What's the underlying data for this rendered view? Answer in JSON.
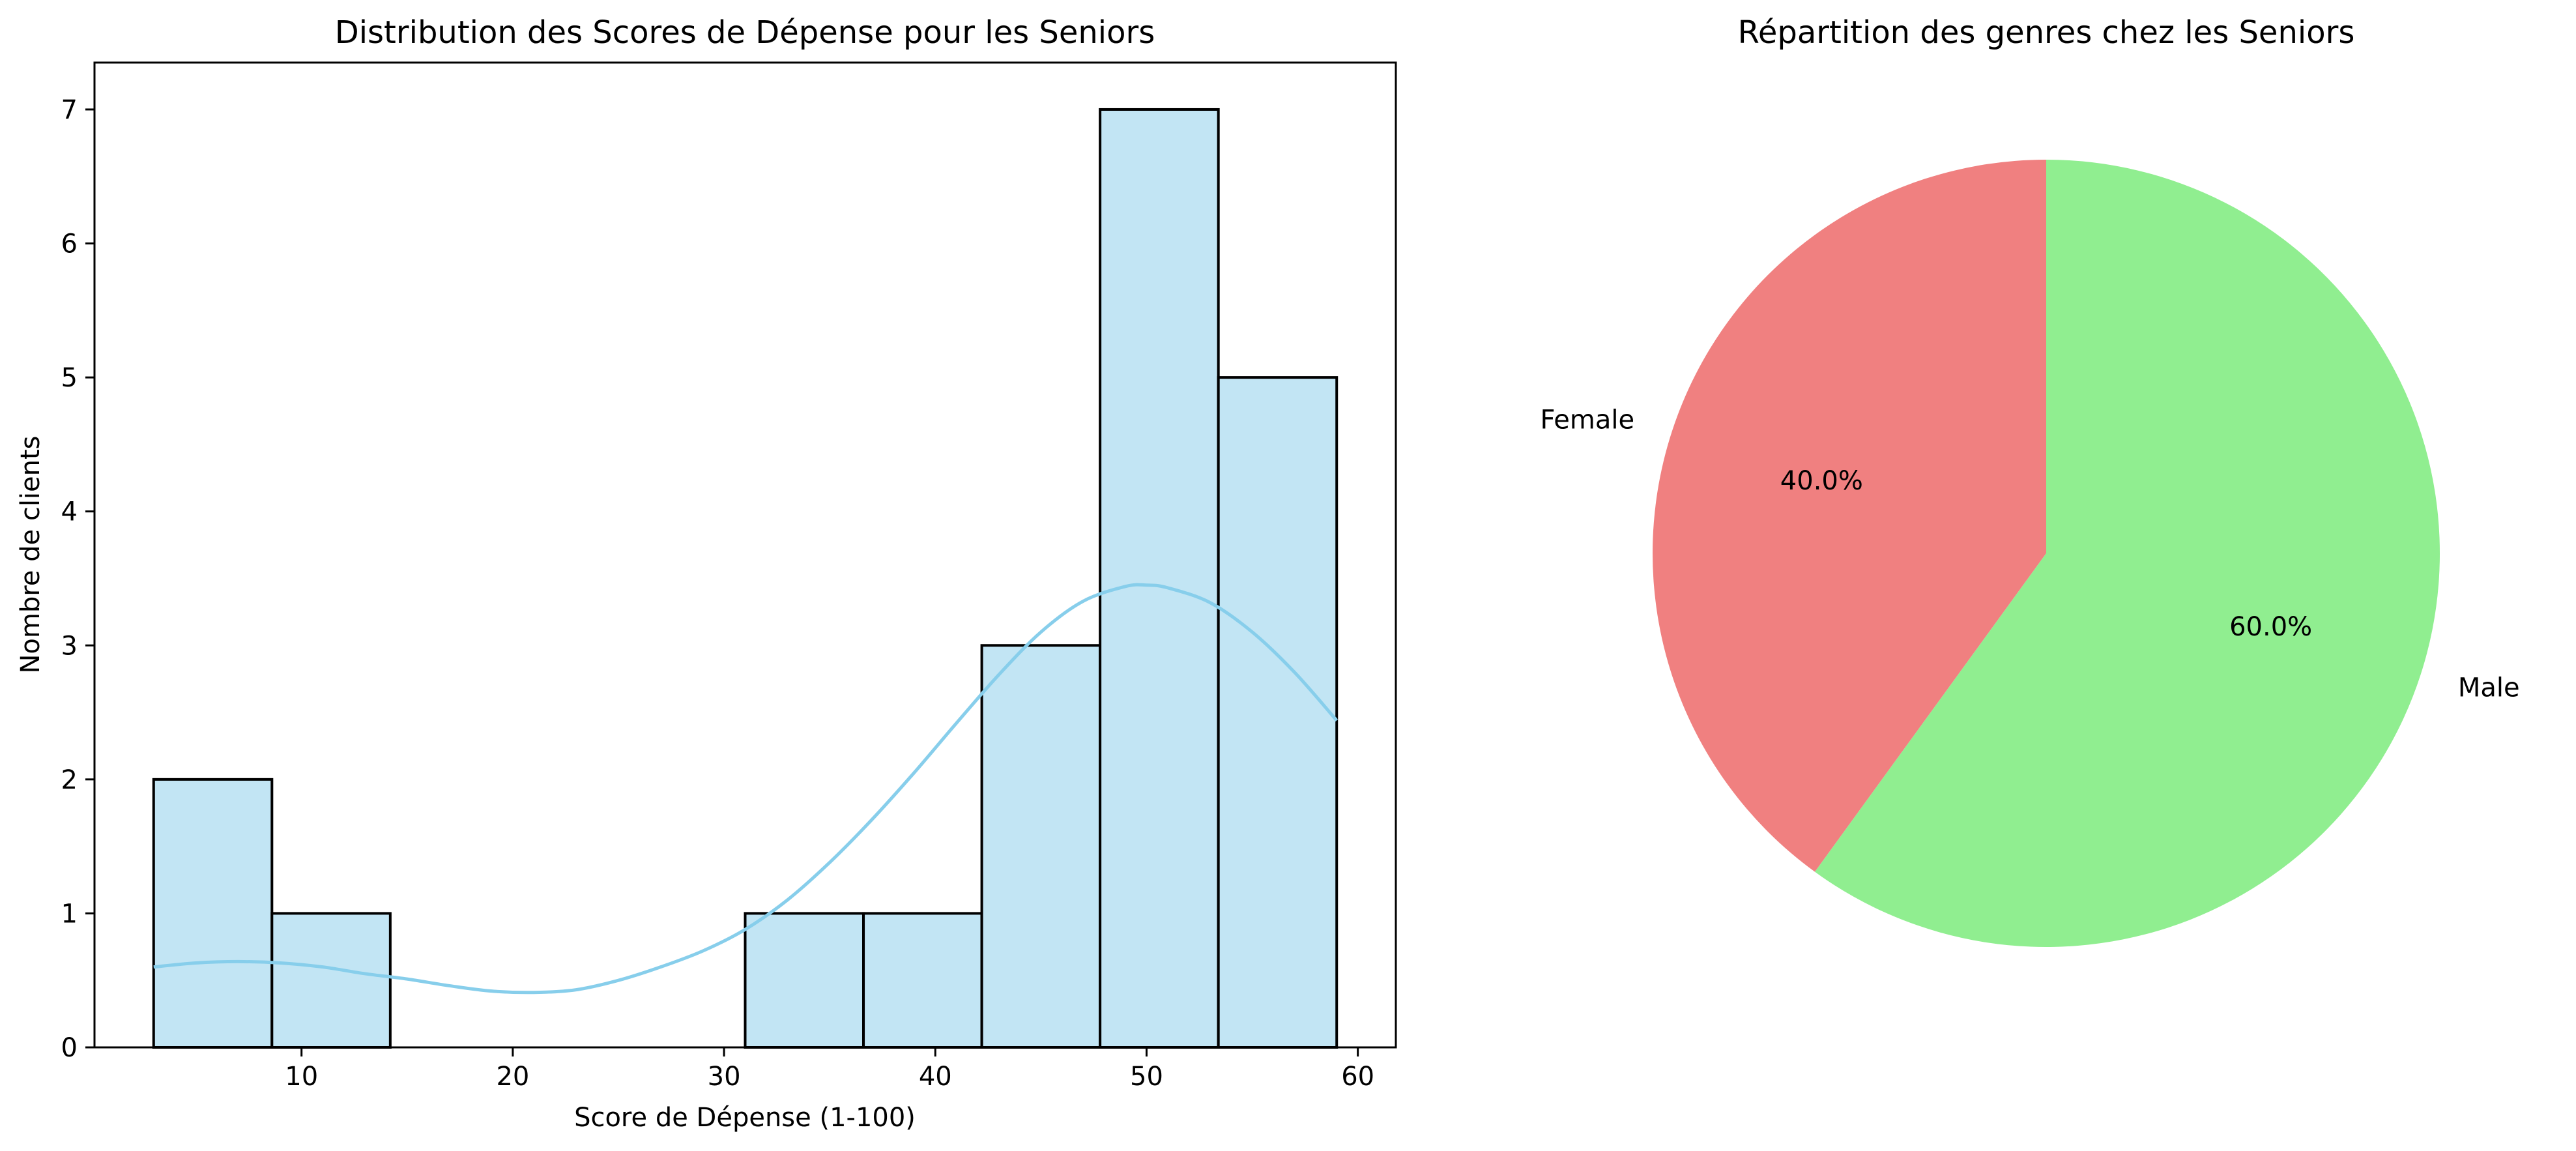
{
  "chart_data": [
    {
      "type": "bar",
      "title": "Distribution des Scores de Dépense pour les Seniors",
      "xlabel": "Score de Dépense (1-100)",
      "ylabel": "Nombre de clients",
      "xlim": [
        0.2,
        61.8
      ],
      "ylim": [
        0,
        7.35
      ],
      "xticks": [
        10,
        20,
        30,
        40,
        50,
        60
      ],
      "yticks": [
        0,
        1,
        2,
        3,
        4,
        5,
        6,
        7
      ],
      "bins": [
        {
          "start": 3.0,
          "end": 8.6,
          "count": 2
        },
        {
          "start": 8.6,
          "end": 14.2,
          "count": 1
        },
        {
          "start": 14.2,
          "end": 19.8,
          "count": 0
        },
        {
          "start": 19.8,
          "end": 25.4,
          "count": 0
        },
        {
          "start": 25.4,
          "end": 31.0,
          "count": 0
        },
        {
          "start": 31.0,
          "end": 36.6,
          "count": 1
        },
        {
          "start": 36.6,
          "end": 42.2,
          "count": 1
        },
        {
          "start": 42.2,
          "end": 47.8,
          "count": 3
        },
        {
          "start": 47.8,
          "end": 53.4,
          "count": 7
        },
        {
          "start": 53.4,
          "end": 59.0,
          "count": 5
        }
      ],
      "kde": {
        "x": [
          3,
          5,
          7,
          9,
          11,
          13,
          15,
          17,
          19,
          21,
          23,
          25,
          27,
          29,
          31,
          33,
          35,
          37,
          39,
          41,
          43,
          45,
          47,
          49,
          50,
          51,
          53,
          55,
          57,
          59
        ],
        "y": [
          0.6,
          0.63,
          0.64,
          0.63,
          0.6,
          0.55,
          0.51,
          0.46,
          0.42,
          0.41,
          0.43,
          0.5,
          0.6,
          0.72,
          0.88,
          1.1,
          1.38,
          1.7,
          2.05,
          2.42,
          2.78,
          3.1,
          3.33,
          3.44,
          3.45,
          3.43,
          3.32,
          3.1,
          2.8,
          2.44
        ]
      },
      "colors": {
        "bar_fill": "#c2e5f4",
        "bar_edge": "#000000",
        "kde": "#87ceeb"
      }
    },
    {
      "type": "pie",
      "title": "Répartition des genres chez les Seniors",
      "startangle": 90,
      "slices": [
        {
          "label": "Female",
          "value": 40.0,
          "pct_label": "40.0%",
          "color": "#f08080"
        },
        {
          "label": "Male",
          "value": 60.0,
          "pct_label": "60.0%",
          "color": "#90ee90"
        }
      ]
    }
  ]
}
